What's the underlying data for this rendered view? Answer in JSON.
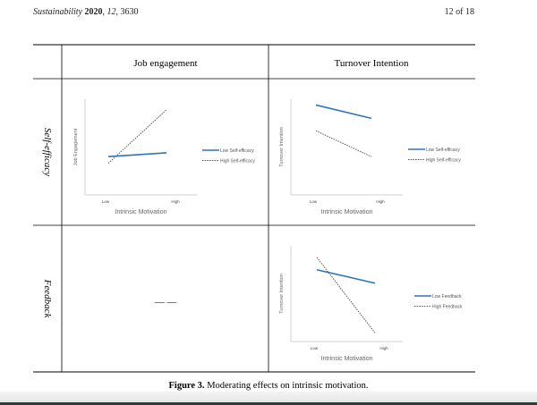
{
  "header": {
    "journal": "Sustainability",
    "year": "2020",
    "volume": "12",
    "article": "3630",
    "page": "12 of 18"
  },
  "table": {
    "columns": [
      "Job engagement",
      "Turnover Intention"
    ],
    "rows": [
      "Self-efficacy",
      "Feedback"
    ],
    "empty_cell": "— —"
  },
  "charts": [
    {
      "ylabel": "Job Engagement",
      "xlabel": "Intrinsic Motivation",
      "ticks": [
        "Low",
        "High"
      ],
      "series": [
        {
          "name": "Low Self-efficacy",
          "style": "solid",
          "values": [
            0.4,
            0.44
          ]
        },
        {
          "name": "High Self-efficacy",
          "style": "dotted",
          "values": [
            0.33,
            0.89
          ]
        }
      ]
    },
    {
      "ylabel": "Turnover Intention",
      "xlabel": "Intrinsic Motivation",
      "ticks": [
        "Low",
        "High"
      ],
      "series": [
        {
          "name": "Low Self-efficacy",
          "style": "solid",
          "values": [
            0.94,
            0.8
          ]
        },
        {
          "name": "High Self-efficacy",
          "style": "dotted",
          "values": [
            0.67,
            0.4
          ]
        }
      ]
    },
    {
      "ylabel": "Turnover Intention",
      "xlabel": "Intrinsic Motivation",
      "ticks": [
        "Low",
        "High"
      ],
      "series": [
        {
          "name": "Low Feedback",
          "style": "solid",
          "values": [
            0.75,
            0.61
          ]
        },
        {
          "name": "High Feedback",
          "style": "dotted",
          "values": [
            0.88,
            0.09
          ]
        }
      ]
    }
  ],
  "caption": {
    "label": "Figure 3.",
    "text": "Moderating effects on intrinsic motivation."
  },
  "colors": {
    "solid": "#2e75b6",
    "dotted": "#555555"
  }
}
